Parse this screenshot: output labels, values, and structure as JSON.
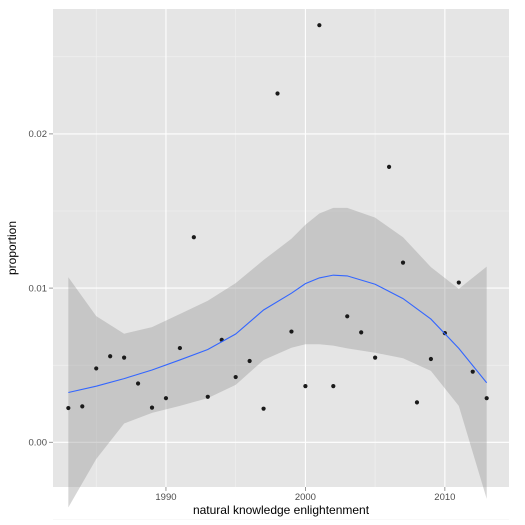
{
  "chart_data": {
    "type": "scatter",
    "title": "",
    "xlabel": "natural knowledge enlightenment",
    "ylabel": "proportion",
    "xlim": [
      1981.9,
      2014.6
    ],
    "ylim": [
      -0.0029,
      0.0281
    ],
    "x_ticks": [
      1990,
      2000,
      2010
    ],
    "x_tick_labels": [
      "1990",
      "2000",
      "2010"
    ],
    "x_minor_ticks": [
      1985,
      1995,
      2005
    ],
    "y_ticks": [
      0.0,
      0.01,
      0.02
    ],
    "y_tick_labels": [
      "0.00",
      "0.01",
      "0.02"
    ],
    "y_minor_ticks": [
      -0.005,
      0.005,
      0.015,
      0.025
    ],
    "grid": true,
    "legend": "none",
    "colors": {
      "panel": "#e5e5e5",
      "grid_major": "#ffffff",
      "grid_minor": "#f2f2f2",
      "points": "#1a1a1a",
      "smooth": "#3366ff",
      "band": "#999999"
    },
    "series": [
      {
        "kind": "points",
        "x": [
          1983,
          1984,
          1985,
          1986,
          1987,
          1988,
          1989,
          1990,
          1991,
          1992,
          1993,
          1994,
          1995,
          1996,
          1997,
          1998,
          1999,
          2000,
          2001,
          2002,
          2003,
          2004,
          2005,
          2006,
          2007,
          2008,
          2009,
          2010,
          2011,
          2012,
          2013
        ],
        "y": [
          0.00222,
          0.00233,
          0.00479,
          0.00558,
          0.00549,
          0.00381,
          0.00225,
          0.00286,
          0.00611,
          0.0133,
          0.00295,
          0.00664,
          0.00423,
          0.00527,
          0.00218,
          0.02262,
          0.00718,
          0.00364,
          0.02705,
          0.00364,
          0.00817,
          0.00713,
          0.00549,
          0.01786,
          0.01165,
          0.00259,
          0.0054,
          0.00708,
          0.01036,
          0.00458,
          0.00286
        ]
      },
      {
        "kind": "smooth",
        "x": [
          1983,
          1985,
          1987,
          1989,
          1991,
          1993,
          1995,
          1997,
          1999,
          2000,
          2001,
          2002,
          2003,
          2005,
          2007,
          2009,
          2011,
          2013
        ],
        "y": [
          0.00323,
          0.00364,
          0.00413,
          0.00469,
          0.00534,
          0.00602,
          0.00702,
          0.00858,
          0.00967,
          0.01029,
          0.01066,
          0.01084,
          0.01079,
          0.01025,
          0.00932,
          0.00799,
          0.00609,
          0.00386
        ],
        "lower": [
          -0.00422,
          -0.00108,
          0.00122,
          0.00191,
          0.00236,
          0.00286,
          0.00372,
          0.00534,
          0.00613,
          0.00636,
          0.00636,
          0.00627,
          0.00609,
          0.00581,
          0.00545,
          0.00463,
          0.00236,
          -0.00367
        ],
        "upper": [
          0.0107,
          0.00818,
          0.00704,
          0.00747,
          0.00832,
          0.00918,
          0.01032,
          0.01182,
          0.0132,
          0.01411,
          0.01484,
          0.0152,
          0.0152,
          0.01457,
          0.0133,
          0.01136,
          0.00995,
          0.01139
        ]
      }
    ]
  }
}
